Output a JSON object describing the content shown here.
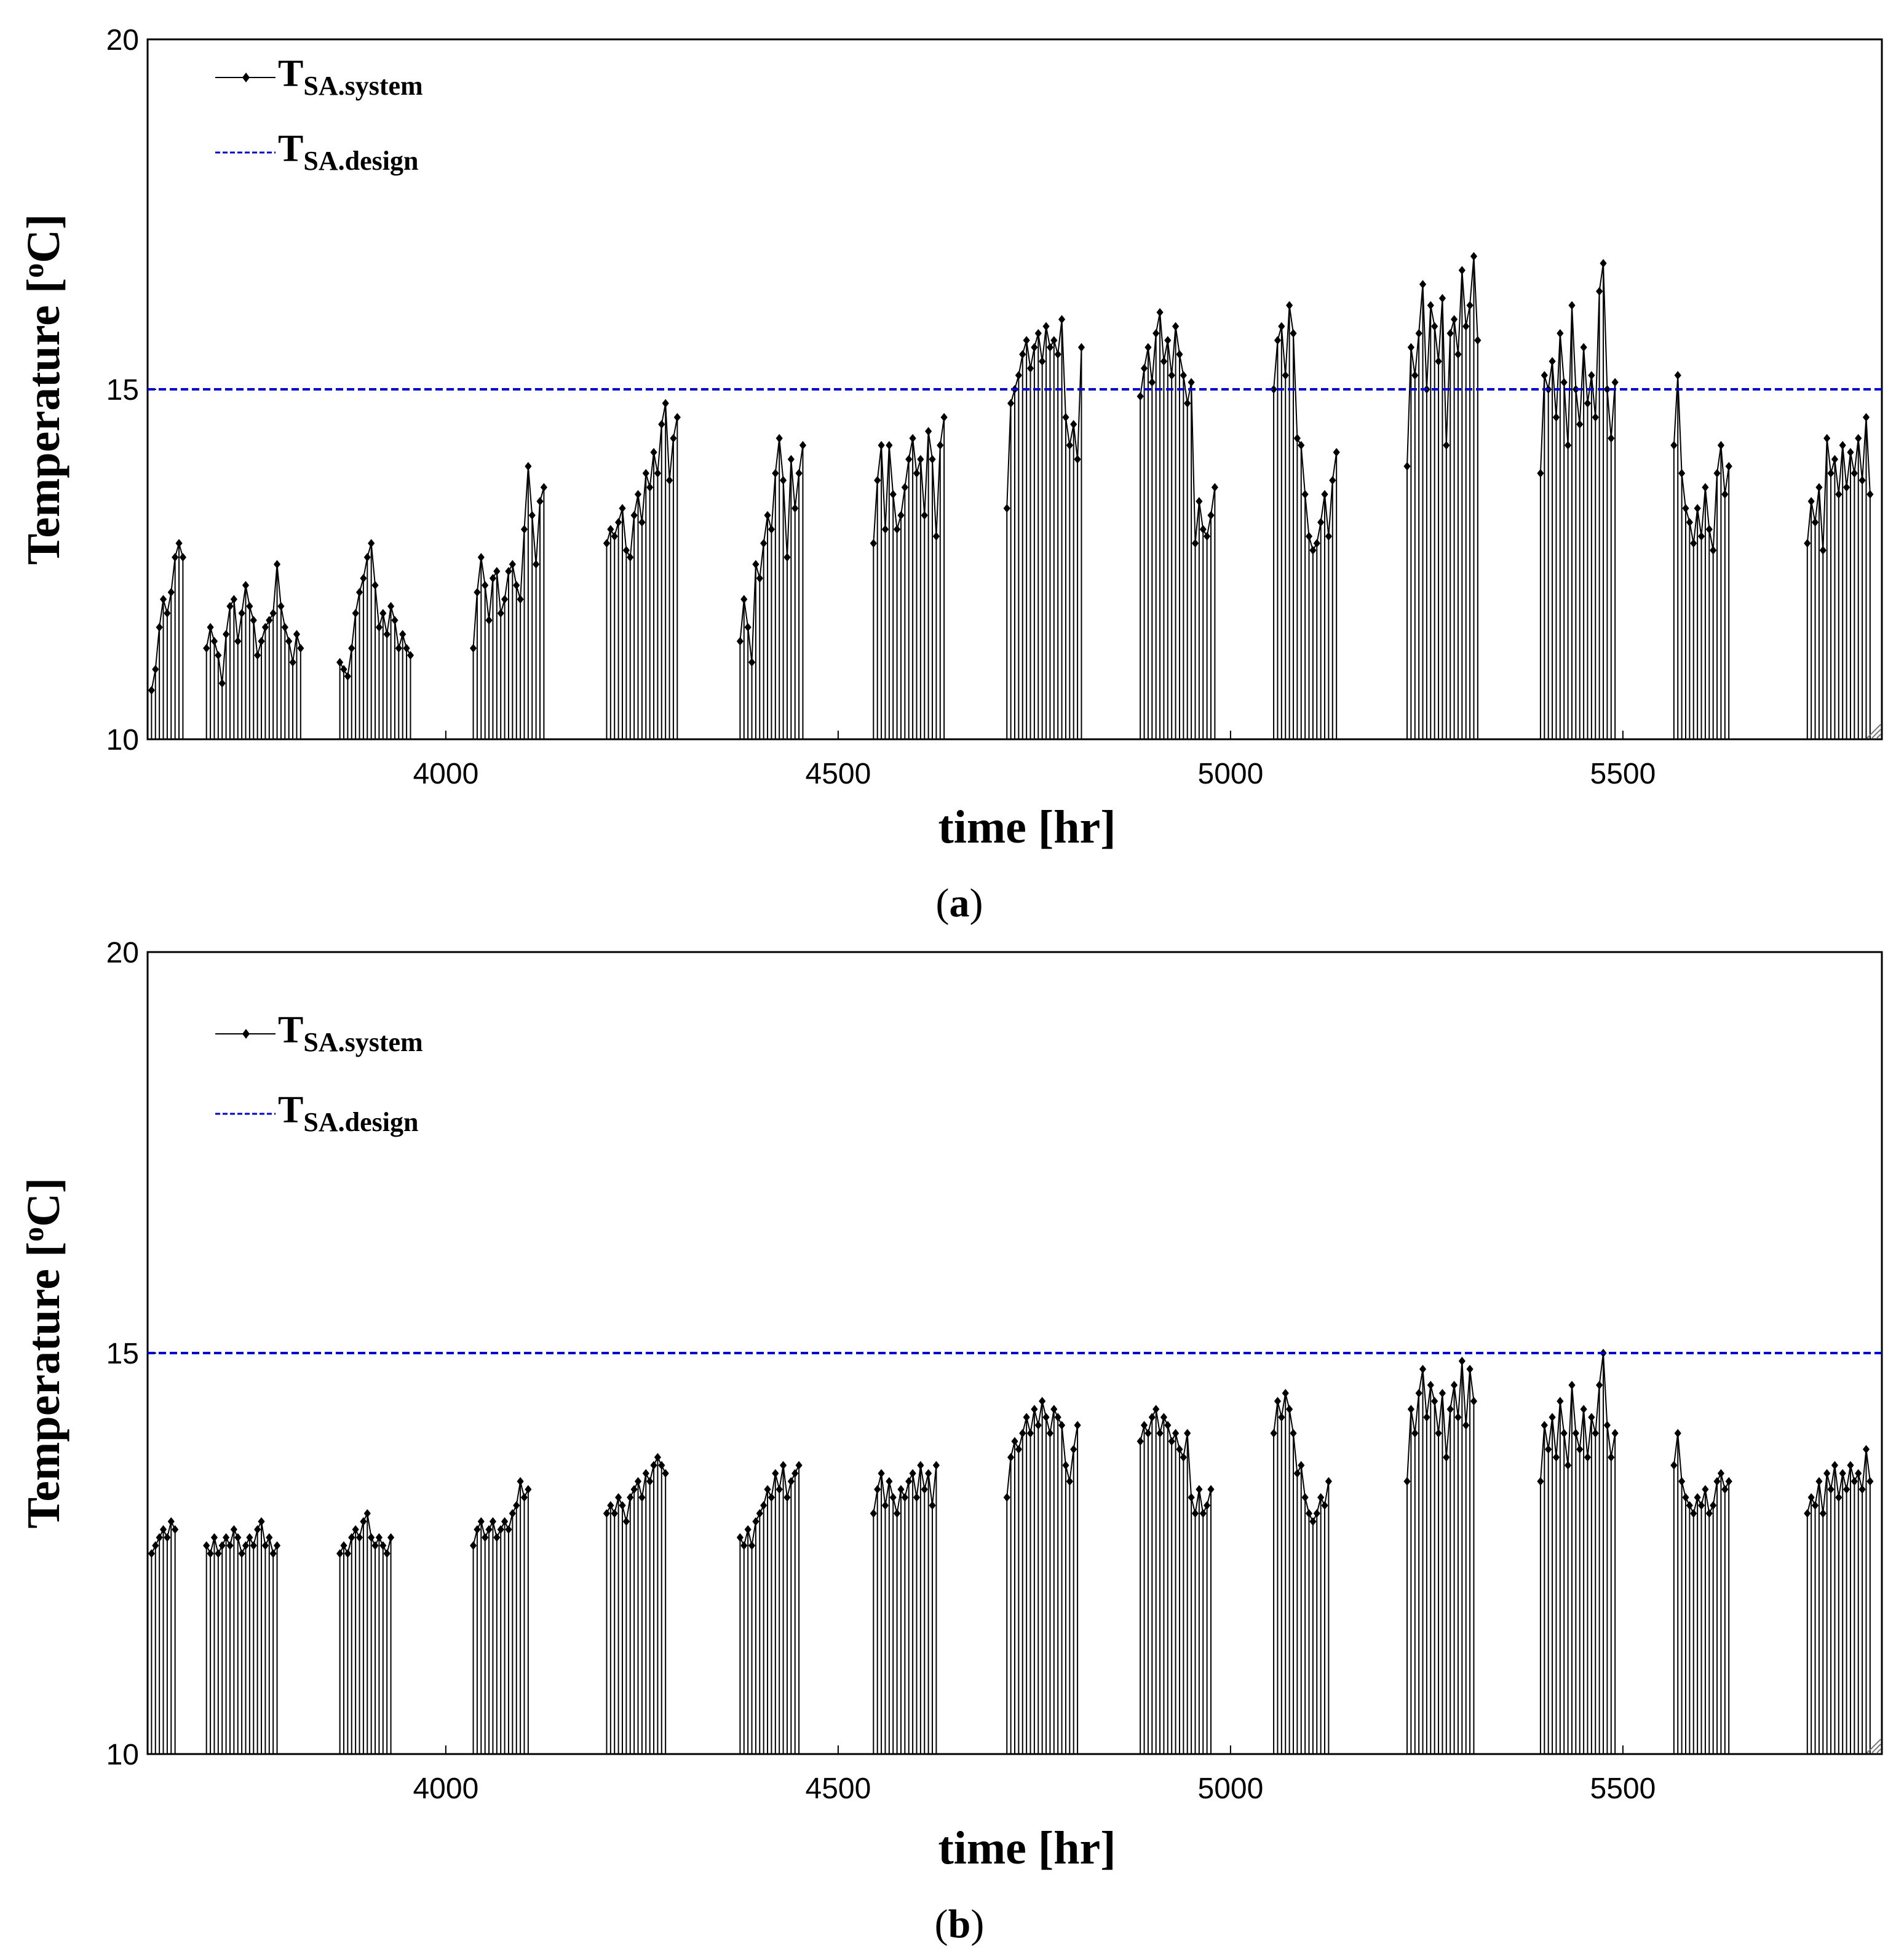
{
  "colors": {
    "system_series": "#000000",
    "design_line": "#0000cc",
    "frame": "#000000",
    "background": "#ffffff"
  },
  "chart_data": [
    {
      "type": "line",
      "panel_label": "(a)",
      "panel_letter": "a",
      "xlabel": "time  [hr]",
      "ylabel_prefix": "Temperature [",
      "ylabel_sup": "o",
      "ylabel_suffix": "C]",
      "xlim": [
        3620,
        5830
      ],
      "ylim": [
        10,
        20
      ],
      "xticks": [
        4000,
        4500,
        5000,
        5500
      ],
      "yticks": [
        10,
        15,
        20
      ],
      "legend": [
        {
          "base": "T",
          "sub": "SA.system",
          "style": "line-marker"
        },
        {
          "base": "T",
          "sub": "SA.design",
          "style": "dashed"
        }
      ],
      "design_value": 15,
      "series": {
        "name": "TSA.system",
        "off_value": 10,
        "days": [
          {
            "start": 3625,
            "vals": [
              10.7,
              11.0,
              11.6,
              12.0,
              11.8,
              12.1,
              12.6,
              12.8,
              12.6
            ]
          },
          {
            "start": 3695,
            "vals": [
              11.3,
              11.6,
              11.4,
              11.2,
              10.8,
              11.5,
              11.9,
              12.0,
              11.4,
              11.8,
              12.2,
              11.9,
              11.7,
              11.2,
              11.4,
              11.6,
              11.7,
              11.8,
              12.5,
              11.9,
              11.6,
              11.4,
              11.1,
              11.5,
              11.3
            ]
          },
          {
            "start": 3865,
            "vals": [
              11.1,
              11.0,
              10.9,
              11.3,
              11.8,
              12.1,
              12.3,
              12.6,
              12.8,
              12.2,
              11.6,
              11.8,
              11.5,
              11.9,
              11.7,
              11.3,
              11.5,
              11.3,
              11.2
            ]
          },
          {
            "start": 4035,
            "vals": [
              11.3,
              12.1,
              12.6,
              12.2,
              11.7,
              12.3,
              12.4,
              11.8,
              12.0,
              12.4,
              12.5,
              12.2,
              12.0,
              13.0,
              13.9,
              13.2,
              12.5,
              13.4,
              13.6
            ]
          },
          {
            "start": 4205,
            "vals": [
              12.8,
              13.0,
              12.9,
              13.1,
              13.3,
              12.7,
              12.6,
              13.2,
              13.5,
              13.1,
              13.8,
              13.6,
              14.1,
              13.8,
              14.5,
              14.8,
              13.7,
              14.3,
              14.6
            ]
          },
          {
            "start": 4375,
            "vals": [
              11.4,
              12.0,
              11.6,
              11.1,
              12.5,
              12.3,
              12.8,
              13.2,
              13.0,
              13.8,
              14.3,
              13.7,
              12.6,
              14.0,
              13.3,
              13.8,
              14.2
            ]
          },
          {
            "start": 4545,
            "vals": [
              12.8,
              13.7,
              14.2,
              13.0,
              14.2,
              13.5,
              13.0,
              13.2,
              13.6,
              14.0,
              14.3,
              13.8,
              14.0,
              13.2,
              14.4,
              14.0,
              12.9,
              14.2,
              14.6
            ]
          },
          {
            "start": 4715,
            "vals": [
              13.3,
              14.8,
              15.0,
              15.2,
              15.5,
              15.7,
              15.3,
              15.6,
              15.8,
              15.4,
              15.9,
              15.6,
              15.7,
              15.5,
              16.0,
              14.6,
              14.2,
              14.5,
              14.0,
              15.6
            ]
          },
          {
            "start": 4885,
            "vals": [
              14.9,
              15.3,
              15.6,
              15.1,
              15.8,
              16.1,
              15.4,
              15.7,
              15.2,
              15.9,
              15.5,
              15.2,
              14.8,
              15.1,
              12.8,
              13.4,
              13.0,
              12.9,
              13.2,
              13.6
            ]
          },
          {
            "start": 5055,
            "vals": [
              15.0,
              15.7,
              15.9,
              15.2,
              16.2,
              15.8,
              14.3,
              14.2,
              13.5,
              12.9,
              12.7,
              12.8,
              13.1,
              13.5,
              12.9,
              13.7,
              14.1
            ]
          },
          {
            "start": 5225,
            "vals": [
              13.9,
              15.6,
              15.2,
              15.8,
              16.5,
              15.0,
              16.2,
              15.9,
              15.4,
              16.3,
              14.2,
              15.8,
              16.0,
              15.5,
              16.7,
              15.9,
              16.2,
              16.9,
              15.7
            ]
          },
          {
            "start": 5395,
            "vals": [
              13.8,
              15.2,
              15.0,
              15.4,
              14.6,
              15.8,
              15.1,
              14.2,
              16.2,
              15.0,
              14.5,
              15.6,
              14.8,
              15.2,
              14.6,
              16.4,
              16.8,
              15.0,
              14.3,
              15.1
            ]
          },
          {
            "start": 5565,
            "vals": [
              14.2,
              15.2,
              13.8,
              13.3,
              13.1,
              12.8,
              13.3,
              12.9,
              13.6,
              13.0,
              12.7,
              13.8,
              14.2,
              13.5,
              13.9
            ]
          },
          {
            "start": 5735,
            "vals": [
              12.8,
              13.4,
              13.1,
              13.6,
              12.7,
              14.3,
              13.8,
              14.0,
              13.5,
              14.2,
              13.6,
              14.1,
              13.8,
              14.3,
              13.7,
              14.6,
              13.5
            ]
          }
        ]
      }
    },
    {
      "type": "line",
      "panel_label": "(b)",
      "panel_letter": "b",
      "xlabel": "time  [hr]",
      "ylabel_prefix": "Temperature [",
      "ylabel_sup": "o",
      "ylabel_suffix": "C]",
      "xlim": [
        3620,
        5830
      ],
      "ylim": [
        10,
        20
      ],
      "xticks": [
        4000,
        4500,
        5000,
        5500
      ],
      "yticks": [
        10,
        15,
        20
      ],
      "legend": [
        {
          "base": "T",
          "sub": "SA.system",
          "style": "line-marker"
        },
        {
          "base": "T",
          "sub": "SA.design",
          "style": "dashed"
        }
      ],
      "design_value": 15,
      "series": {
        "name": "TSA.system",
        "off_value": 10,
        "days": [
          {
            "start": 3625,
            "vals": [
              12.5,
              12.6,
              12.7,
              12.8,
              12.7,
              12.9,
              12.8
            ]
          },
          {
            "start": 3695,
            "vals": [
              12.6,
              12.5,
              12.7,
              12.5,
              12.6,
              12.7,
              12.6,
              12.8,
              12.7,
              12.5,
              12.6,
              12.7,
              12.6,
              12.8,
              12.9,
              12.6,
              12.7,
              12.5,
              12.6
            ]
          },
          {
            "start": 3865,
            "vals": [
              12.5,
              12.6,
              12.5,
              12.7,
              12.8,
              12.7,
              12.9,
              13.0,
              12.7,
              12.6,
              12.7,
              12.6,
              12.5,
              12.7
            ]
          },
          {
            "start": 4035,
            "vals": [
              12.6,
              12.8,
              12.9,
              12.7,
              12.8,
              12.9,
              12.7,
              12.8,
              12.9,
              12.8,
              13.0,
              13.1,
              13.4,
              13.2,
              13.3
            ]
          },
          {
            "start": 4205,
            "vals": [
              13.0,
              13.1,
              13.0,
              13.2,
              13.1,
              12.9,
              13.2,
              13.3,
              13.4,
              13.2,
              13.5,
              13.4,
              13.6,
              13.7,
              13.6,
              13.5
            ]
          },
          {
            "start": 4375,
            "vals": [
              12.7,
              12.6,
              12.8,
              12.6,
              12.9,
              13.0,
              13.1,
              13.3,
              13.2,
              13.5,
              13.3,
              13.6,
              13.2,
              13.4,
              13.5,
              13.6
            ]
          },
          {
            "start": 4545,
            "vals": [
              13.0,
              13.3,
              13.5,
              13.1,
              13.4,
              13.2,
              13.0,
              13.3,
              13.2,
              13.4,
              13.5,
              13.2,
              13.6,
              13.3,
              13.5,
              13.1,
              13.6
            ]
          },
          {
            "start": 4715,
            "vals": [
              13.2,
              13.7,
              13.9,
              13.8,
              14.0,
              14.2,
              14.0,
              14.3,
              14.1,
              14.4,
              14.2,
              14.0,
              14.3,
              14.2,
              14.1,
              13.6,
              13.4,
              13.8,
              14.1
            ]
          },
          {
            "start": 4885,
            "vals": [
              13.9,
              14.1,
              14.0,
              14.2,
              14.3,
              14.0,
              14.2,
              14.1,
              13.9,
              14.0,
              13.8,
              13.7,
              14.0,
              13.2,
              13.0,
              13.3,
              13.0,
              13.1,
              13.3
            ]
          },
          {
            "start": 5055,
            "vals": [
              14.0,
              14.4,
              14.2,
              14.5,
              14.3,
              14.0,
              13.5,
              13.6,
              13.2,
              13.0,
              12.9,
              13.0,
              13.2,
              13.1,
              13.4
            ]
          },
          {
            "start": 5225,
            "vals": [
              13.4,
              14.3,
              14.0,
              14.5,
              14.8,
              14.2,
              14.6,
              14.4,
              14.0,
              14.5,
              13.7,
              14.3,
              14.6,
              14.2,
              14.9,
              14.1,
              14.8,
              14.4
            ]
          },
          {
            "start": 5395,
            "vals": [
              13.4,
              14.1,
              13.8,
              14.2,
              13.7,
              14.4,
              14.0,
              13.6,
              14.6,
              14.0,
              13.8,
              14.3,
              13.7,
              14.2,
              14.0,
              14.6,
              15.0,
              14.1,
              13.7,
              14.0
            ]
          },
          {
            "start": 5565,
            "vals": [
              13.6,
              14.0,
              13.4,
              13.2,
              13.1,
              13.0,
              13.2,
              13.1,
              13.3,
              13.0,
              13.1,
              13.4,
              13.5,
              13.3,
              13.4
            ]
          },
          {
            "start": 5735,
            "vals": [
              13.0,
              13.2,
              13.1,
              13.4,
              13.0,
              13.5,
              13.3,
              13.6,
              13.2,
              13.5,
              13.3,
              13.6,
              13.4,
              13.5,
              13.3,
              13.8,
              13.4
            ]
          }
        ]
      }
    }
  ]
}
